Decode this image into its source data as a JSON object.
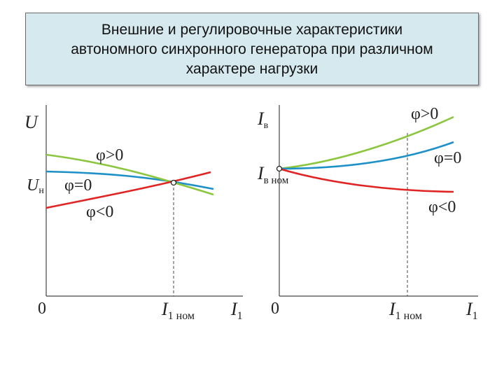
{
  "title": {
    "line1": "Внешние и регулировочные характеристики",
    "line2": "автономного синхронного генератора при различном",
    "line3": "характере нагрузки"
  },
  "left_chart": {
    "y_label": "U",
    "y_sub_label": "U",
    "y_sub_index": "н",
    "x_origin": "0",
    "x_nominal_main": "I",
    "x_nominal_sub": "1 ном",
    "x_label_main": "I",
    "x_label_sub": "1",
    "curve_labels": {
      "phi_pos": "φ>0",
      "phi_zero": "φ=0",
      "phi_neg": "φ<0"
    }
  },
  "right_chart": {
    "y_label": "I",
    "y_label_sub": "в",
    "y_nominal_main": "I",
    "y_nominal_sub": "в ном",
    "x_origin": "0",
    "x_nominal_main": "I",
    "x_nominal_sub": "1 ном",
    "x_label_main": "I",
    "x_label_sub": "1",
    "curve_labels": {
      "phi_pos": "φ>0",
      "phi_zero": "φ=0",
      "phi_neg": "φ<0"
    }
  },
  "colors": {
    "phi_pos": "#8cc63f",
    "phi_zero": "#1e90c8",
    "phi_neg": "#e02424",
    "title_bg": "#d6e9ee"
  }
}
